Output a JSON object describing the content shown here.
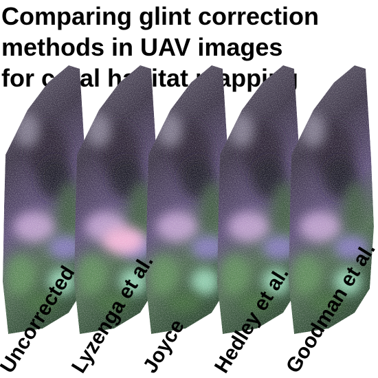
{
  "title_lines": [
    "Comparing glint correction",
    "methods in UAV images",
    "for coral habitat mapping"
  ],
  "panels": [
    {
      "label": "Uncorrected"
    },
    {
      "label": "Lyzenga et al."
    },
    {
      "label": "Joyce"
    },
    {
      "label": "Hedley et al."
    },
    {
      "label": "Goodman et al."
    }
  ]
}
